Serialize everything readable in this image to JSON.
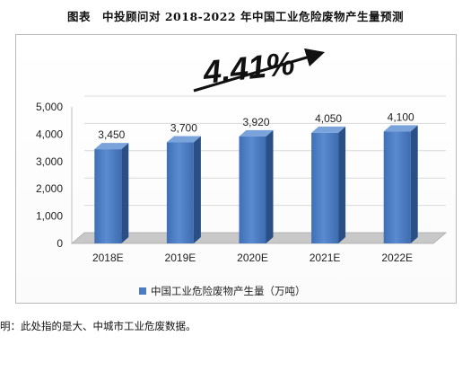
{
  "title": "图表　中投顾问对 2018-2022 年中国工业危险废物产生量预测",
  "note": "明：此处指的是大、中城市工业危废数据。",
  "growth_annotation": "4.41%",
  "colors": {
    "bar_front": "#4a7dc4",
    "bar_side": "#2a4f86",
    "bar_top": "#7aa3dc",
    "floor": "#c8c8c8",
    "grid": "#d9d9d9",
    "text": "#222222"
  },
  "chart_data": {
    "type": "bar",
    "categories": [
      "2018E",
      "2019E",
      "2020E",
      "2021E",
      "2022E"
    ],
    "series": [
      {
        "name": "中国工业危险废物产生量（万吨）",
        "values": [
          3450,
          3700,
          3920,
          4050,
          4100
        ]
      }
    ],
    "data_labels": [
      "3,450",
      "3,700",
      "3,920",
      "4,050",
      "4,100"
    ],
    "y_ticks": [
      "0",
      "1,000",
      "2,000",
      "3,000",
      "4,000",
      "5,000"
    ],
    "y_tick_values": [
      0,
      1000,
      2000,
      3000,
      4000,
      5000
    ],
    "ylim": [
      0,
      5000
    ],
    "grid": true,
    "legend_position": "bottom-center"
  }
}
